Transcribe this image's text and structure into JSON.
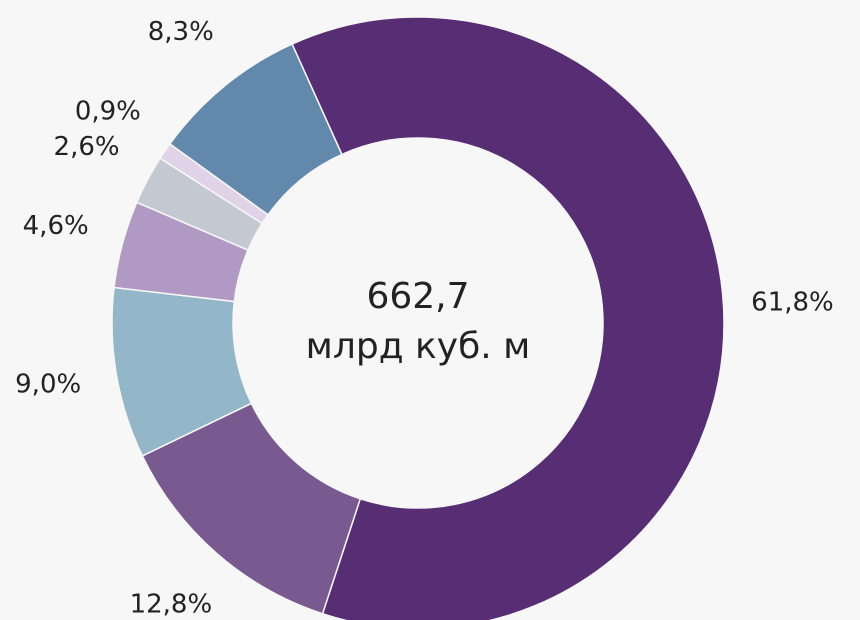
{
  "chart_data": {
    "type": "donut",
    "center_text": [
      "662,7",
      "млрд куб. м"
    ],
    "values": [
      61.8,
      12.8,
      9.0,
      4.6,
      2.6,
      0.9,
      8.3
    ],
    "value_labels": [
      "61,8%",
      "12,8%",
      "9,0%",
      "4,6%",
      "2,6%",
      "0,9%",
      "8,3%"
    ],
    "colors": [
      "#572d73",
      "#785990",
      "#93b6c8",
      "#b09ac4",
      "#c4c8d0",
      "#e0d3e8",
      "#6288ab"
    ]
  }
}
